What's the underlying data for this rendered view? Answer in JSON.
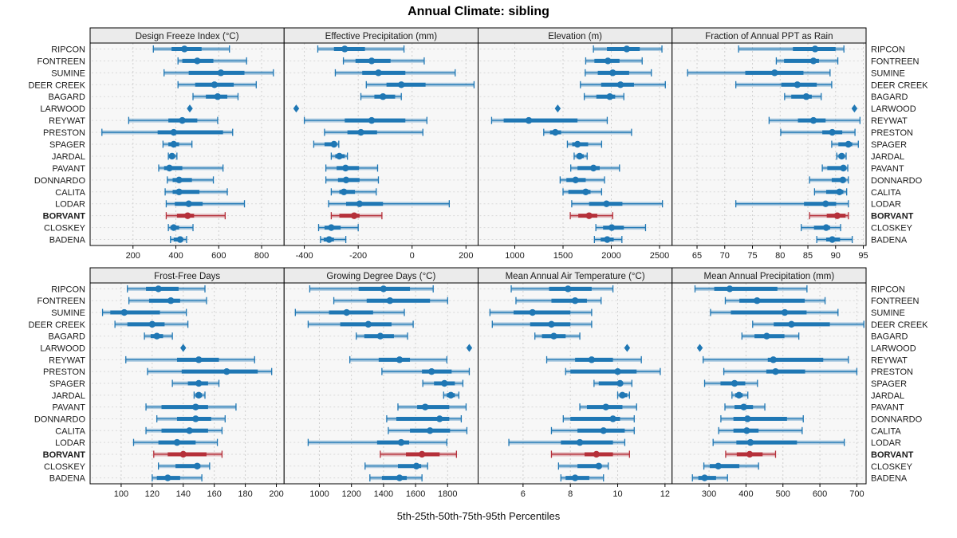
{
  "chart_data": {
    "type": "dot-whisker-percentile-trellis",
    "title": "Annual Climate: sibling",
    "caption": "5th-25th-50th-75th-95th Percentiles",
    "percentiles": [
      5,
      25,
      50,
      75,
      95
    ],
    "legend_position": "none",
    "grid": true,
    "sites": [
      "RIPCON",
      "FONTREEN",
      "SUMINE",
      "DEER CREEK",
      "BAGARD",
      "LARWOOD",
      "REYWAT",
      "PRESTON",
      "SPAGER",
      "JARDAL",
      "PAVANT",
      "DONNARDO",
      "CALITA",
      "LODAR",
      "BORVANT",
      "CLOSKEY",
      "BADENA"
    ],
    "highlight_site": "BORVANT",
    "single_value_site": "LARWOOD",
    "single_value_marker": "diamond",
    "colors": {
      "series": "#1f77b4",
      "series_band": "rgba(31,119,180,0.32)",
      "highlight": "#b5303a",
      "highlight_band": "rgba(181,48,58,0.32)",
      "panel_bg": "#f7f7f7",
      "header_bg": "#ebebeb",
      "grid": "#cfcfcf",
      "row_grid": "#d9d9d9",
      "border": "#000000",
      "text": "#1a1a1a"
    },
    "panels": [
      {
        "label": "Design Freeze Index (°C)",
        "xlim": [
          0,
          905
        ],
        "ticks": [
          200,
          400,
          600,
          800
        ],
        "values": {
          "RIPCON": [
            295,
            380,
            440,
            520,
            650
          ],
          "FONTREEN": [
            410,
            430,
            500,
            575,
            730
          ],
          "SUMINE": [
            345,
            460,
            610,
            720,
            855
          ],
          "DEER CREEK": [
            410,
            490,
            580,
            670,
            775
          ],
          "BAGARD": [
            480,
            540,
            595,
            640,
            690
          ],
          "LARWOOD": [
            465
          ],
          "REYWAT": [
            180,
            365,
            430,
            500,
            595
          ],
          "PRESTON": [
            55,
            315,
            390,
            620,
            665
          ],
          "SPAGER": [
            340,
            365,
            390,
            415,
            475
          ],
          "JARDAL": [
            365,
            375,
            382,
            395,
            405
          ],
          "PAVANT": [
            320,
            345,
            370,
            430,
            620
          ],
          "DONNARDO": [
            360,
            385,
            415,
            475,
            575
          ],
          "CALITA": [
            350,
            385,
            415,
            510,
            640
          ],
          "LODAR": [
            355,
            395,
            460,
            525,
            720
          ],
          "BORVANT": [
            355,
            405,
            455,
            485,
            630
          ],
          "CLOSKEY": [
            365,
            375,
            390,
            415,
            480
          ],
          "BADENA": [
            375,
            390,
            420,
            430,
            450
          ]
        }
      },
      {
        "label": "Effective Precipitation (mm)",
        "xlim": [
          -475,
          245
        ],
        "ticks": [
          -400,
          -200,
          0,
          200
        ],
        "values": {
          "RIPCON": [
            -350,
            -290,
            -250,
            -175,
            -30
          ],
          "FONTREEN": [
            -255,
            -210,
            -150,
            -80,
            45
          ],
          "SUMINE": [
            -285,
            -185,
            -125,
            -25,
            160
          ],
          "DEER CREEK": [
            -170,
            -95,
            -40,
            50,
            230
          ],
          "BAGARD": [
            -190,
            -140,
            -108,
            -63,
            -40
          ],
          "LARWOOD": [
            -430
          ],
          "REYWAT": [
            -400,
            -250,
            -150,
            -25,
            55
          ],
          "PRESTON": [
            -325,
            -240,
            -190,
            -130,
            40
          ],
          "SPAGER": [
            -365,
            -325,
            -290,
            -280,
            -272
          ],
          "JARDAL": [
            -300,
            -285,
            -270,
            -250,
            -240
          ],
          "PAVANT": [
            -320,
            -280,
            -247,
            -197,
            -128
          ],
          "DONNARDO": [
            -320,
            -275,
            -245,
            -195,
            -125
          ],
          "CALITA": [
            -300,
            -270,
            -253,
            -212,
            -133
          ],
          "LODAR": [
            -310,
            -245,
            -195,
            -108,
            138
          ],
          "BORVANT": [
            -300,
            -270,
            -215,
            -195,
            -112
          ],
          "CLOSKEY": [
            -347,
            -325,
            -300,
            -265,
            -200
          ],
          "BADENA": [
            -340,
            -328,
            -308,
            -290,
            -246
          ]
        }
      },
      {
        "label": "Elevation (m)",
        "xlim": [
          620,
          2630
        ],
        "ticks": [
          1000,
          1500,
          2000,
          2500
        ],
        "values": {
          "RIPCON": [
            1815,
            1955,
            2160,
            2295,
            2525
          ],
          "FONTREEN": [
            1735,
            1825,
            1965,
            2085,
            2320
          ],
          "SUMINE": [
            1730,
            1860,
            2015,
            2185,
            2415
          ],
          "DEER CREEK": [
            1680,
            1895,
            2095,
            2235,
            2560
          ],
          "BAGARD": [
            1720,
            1845,
            1985,
            2040,
            2130
          ],
          "LARWOOD": [
            1445
          ],
          "REYWAT": [
            760,
            885,
            1145,
            1650,
            1958
          ],
          "PRESTON": [
            1300,
            1365,
            1420,
            1480,
            2210
          ],
          "SPAGER": [
            1545,
            1595,
            1650,
            1760,
            1900
          ],
          "JARDAL": [
            1615,
            1640,
            1672,
            1714,
            1750
          ],
          "PAVANT": [
            1580,
            1650,
            1815,
            1880,
            2085
          ],
          "DONNARDO": [
            1470,
            1535,
            1630,
            1735,
            1930
          ],
          "CALITA": [
            1500,
            1555,
            1735,
            1785,
            1900
          ],
          "LODAR": [
            1590,
            1770,
            1950,
            2115,
            2530
          ],
          "BORVANT": [
            1575,
            1658,
            1770,
            1855,
            2015
          ],
          "CLOSKEY": [
            1840,
            1915,
            2005,
            2130,
            2355
          ],
          "BADENA": [
            1825,
            1890,
            1958,
            2025,
            2110
          ]
        }
      },
      {
        "label": "Fraction of Annual PPT as Rain",
        "xlim": [
          60.5,
          95.5
        ],
        "ticks": [
          65,
          70,
          75,
          80,
          85,
          90,
          95
        ],
        "values": {
          "RIPCON": [
            72.5,
            82.3,
            86.3,
            90,
            91.5
          ],
          "FONTREEN": [
            79.3,
            80.7,
            86,
            87,
            90.4
          ],
          "SUMINE": [
            63.3,
            73.7,
            79,
            84.2,
            89
          ],
          "DEER CREEK": [
            72,
            80.2,
            83.1,
            86.6,
            89.3
          ],
          "BAGARD": [
            80.8,
            82,
            84.7,
            85.7,
            87.4
          ],
          "LARWOOD": [
            93.4
          ],
          "REYWAT": [
            78,
            83.2,
            86,
            88.2,
            94.4
          ],
          "PRESTON": [
            80.1,
            87.6,
            89.4,
            91.2,
            93.5
          ],
          "SPAGER": [
            89.3,
            90.5,
            92.3,
            93,
            94.1
          ],
          "JARDAL": [
            90.2,
            90.6,
            91.1,
            91.6,
            91.9
          ],
          "PAVANT": [
            87.6,
            88.5,
            91.4,
            91.7,
            92.2
          ],
          "DONNARDO": [
            85.3,
            89.3,
            91.3,
            91.8,
            92.3
          ],
          "CALITA": [
            86.2,
            88.3,
            90.7,
            91.4,
            92
          ],
          "LODAR": [
            72,
            84.3,
            88.2,
            90.1,
            92.3
          ],
          "BORVANT": [
            85.3,
            88.4,
            90.3,
            91.8,
            92.3
          ],
          "CLOSKEY": [
            83.8,
            86.1,
            88.3,
            89,
            90.9
          ],
          "BADENA": [
            86.6,
            88.3,
            89.4,
            90.8,
            93
          ]
        }
      },
      {
        "label": "Frost-Free Days",
        "xlim": [
          80,
          205
        ],
        "ticks": [
          100,
          120,
          140,
          160,
          180,
          200
        ],
        "values": {
          "RIPCON": [
            104,
            116,
            124,
            137,
            154
          ],
          "FONTREEN": [
            105,
            118,
            132,
            138,
            155
          ],
          "SUMINE": [
            88,
            93,
            102,
            125,
            142
          ],
          "DEER CREEK": [
            96,
            104,
            120,
            128,
            143
          ],
          "BAGARD": [
            115,
            119,
            123,
            127,
            133
          ],
          "LARWOOD": [
            140
          ],
          "REYWAT": [
            103,
            136,
            150,
            163,
            186
          ],
          "PRESTON": [
            117,
            139,
            168,
            188,
            197
          ],
          "SPAGER": [
            133,
            143,
            150,
            156,
            163
          ],
          "JARDAL": [
            147,
            148,
            150,
            152,
            154
          ],
          "PAVANT": [
            116,
            126,
            148,
            156,
            174
          ],
          "DONNARDO": [
            123,
            136,
            148,
            158,
            167
          ],
          "CALITA": [
            116,
            126,
            144,
            156,
            165
          ],
          "LODAR": [
            108,
            124,
            136,
            148,
            162
          ],
          "BORVANT": [
            121,
            130,
            140,
            155,
            165
          ],
          "CLOSKEY": [
            124,
            135,
            149,
            151,
            157
          ],
          "BADENA": [
            120,
            123,
            130,
            138,
            152
          ]
        }
      },
      {
        "label": "Growing Degree Days (°C)",
        "xlim": [
          780,
          1990
        ],
        "ticks": [
          1000,
          1200,
          1400,
          1600,
          1800
        ],
        "values": {
          "RIPCON": [
            940,
            1245,
            1400,
            1565,
            1710
          ],
          "FONTREEN": [
            1090,
            1295,
            1440,
            1690,
            1800
          ],
          "SUMINE": [
            850,
            1060,
            1170,
            1335,
            1530
          ],
          "DEER CREEK": [
            930,
            1130,
            1305,
            1450,
            1585
          ],
          "BAGARD": [
            1230,
            1280,
            1380,
            1465,
            1550
          ],
          "LARWOOD": [
            1935
          ],
          "REYWAT": [
            1190,
            1370,
            1500,
            1565,
            1795
          ],
          "PRESTON": [
            1390,
            1640,
            1700,
            1825,
            1935
          ],
          "SPAGER": [
            1645,
            1715,
            1780,
            1845,
            1895
          ],
          "JARDAL": [
            1775,
            1795,
            1820,
            1845,
            1870
          ],
          "PAVANT": [
            1490,
            1610,
            1660,
            1810,
            1915
          ],
          "DONNARDO": [
            1420,
            1480,
            1750,
            1810,
            1885
          ],
          "CALITA": [
            1430,
            1565,
            1690,
            1815,
            1920
          ],
          "LODAR": [
            930,
            1360,
            1510,
            1560,
            1795
          ],
          "BORVANT": [
            1380,
            1540,
            1640,
            1750,
            1855
          ],
          "CLOSKEY": [
            1285,
            1490,
            1605,
            1635,
            1675
          ],
          "BADENA": [
            1315,
            1390,
            1500,
            1545,
            1640
          ]
        }
      },
      {
        "label": "Mean Annual Air Temperature (°C)",
        "xlim": [
          4.1,
          12.3
        ],
        "ticks": [
          6,
          8,
          10,
          12
        ],
        "values": {
          "RIPCON": [
            5.5,
            7.1,
            7.9,
            8.9,
            9.8
          ],
          "FONTREEN": [
            5.7,
            7.2,
            8.2,
            8.7,
            9.3
          ],
          "SUMINE": [
            4.6,
            5.6,
            6.4,
            8.0,
            8.9
          ],
          "DEER CREEK": [
            4.7,
            6.3,
            7.2,
            8.0,
            8.9
          ],
          "BAGARD": [
            6.5,
            6.8,
            7.3,
            7.8,
            8.4
          ],
          "LARWOOD": [
            10.4
          ],
          "REYWAT": [
            7.0,
            8.2,
            8.9,
            9.8,
            11.0
          ],
          "PRESTON": [
            7.8,
            8.0,
            10.0,
            10.8,
            11.8
          ],
          "SPAGER": [
            9.0,
            9.2,
            10.1,
            10.2,
            10.6
          ],
          "JARDAL": [
            10.0,
            10.1,
            10.2,
            10.4,
            10.5
          ],
          "PAVANT": [
            8.4,
            8.7,
            9.5,
            10.2,
            10.8
          ],
          "DONNARDO": [
            7.7,
            8.0,
            9.8,
            10.1,
            10.7
          ],
          "CALITA": [
            7.2,
            8.3,
            9.4,
            10.3,
            10.7
          ],
          "LODAR": [
            5.4,
            7.6,
            8.4,
            9.8,
            10.3
          ],
          "BORVANT": [
            7.2,
            8.6,
            9.1,
            9.8,
            10.5
          ],
          "CLOSKEY": [
            7.5,
            8.3,
            9.2,
            9.3,
            9.6
          ],
          "BADENA": [
            7.6,
            7.8,
            8.2,
            8.8,
            9.4
          ]
        }
      },
      {
        "label": "Mean Annual Precipitation (mm)",
        "xlim": [
          200,
          725
        ],
        "ticks": [
          300,
          400,
          500,
          600,
          700
        ],
        "values": {
          "RIPCON": [
            262,
            314,
            356,
            485,
            565
          ],
          "FONTREEN": [
            344,
            382,
            430,
            559,
            614
          ],
          "SUMINE": [
            304,
            359,
            505,
            564,
            649
          ],
          "DEER CREEK": [
            418,
            475,
            523,
            627,
            719
          ],
          "BAGARD": [
            389,
            423,
            456,
            504,
            543
          ],
          "LARWOOD": [
            275
          ],
          "REYWAT": [
            284,
            459,
            474,
            609,
            677
          ],
          "PRESTON": [
            340,
            455,
            480,
            560,
            700
          ],
          "SPAGER": [
            288,
            331,
            369,
            398,
            431
          ],
          "JARDAL": [
            362,
            371,
            381,
            391,
            405
          ],
          "PAVANT": [
            343,
            369,
            394,
            419,
            451
          ],
          "DONNARDO": [
            332,
            366,
            404,
            511,
            555
          ],
          "CALITA": [
            326,
            366,
            402,
            434,
            552
          ],
          "LODAR": [
            311,
            374,
            412,
            538,
            666
          ],
          "BORVANT": [
            345,
            375,
            410,
            445,
            480
          ],
          "CLOSKEY": [
            286,
            302,
            325,
            382,
            434
          ],
          "BADENA": [
            255,
            271,
            288,
            319,
            350
          ]
        }
      }
    ]
  }
}
